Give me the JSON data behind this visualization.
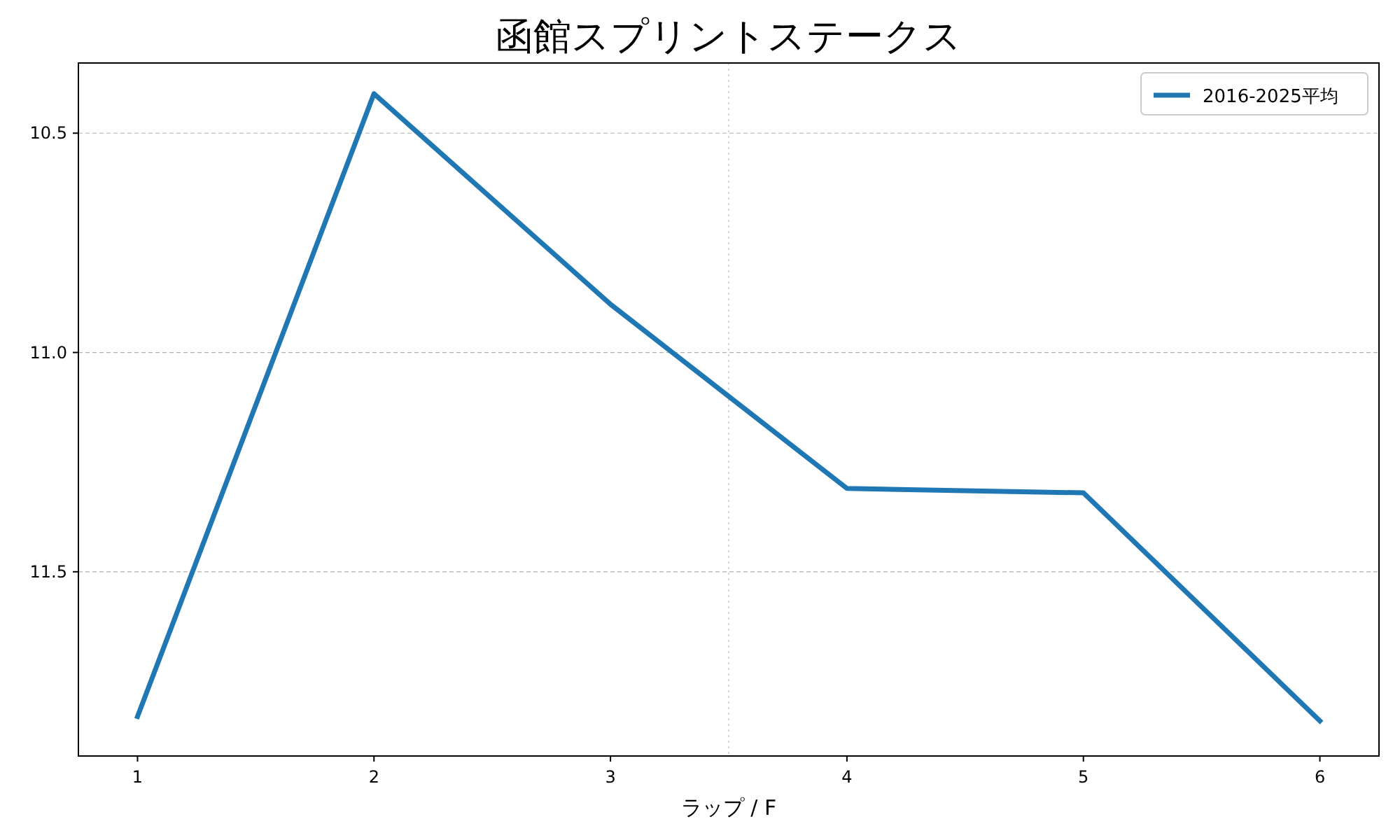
{
  "chart_data": {
    "type": "line",
    "title": "函館スプリントステークス",
    "xlabel": "ラップ / F",
    "x": [
      1,
      2,
      3,
      4,
      5,
      6
    ],
    "series": [
      {
        "name": "2016-2025平均",
        "color": "#1f77b4",
        "values": [
          11.83,
          10.41,
          10.89,
          11.31,
          11.32,
          11.84
        ]
      }
    ],
    "xlim": [
      0.75,
      6.25
    ],
    "xticks": [
      1,
      2,
      3,
      4,
      5,
      6
    ],
    "ylim": [
      11.92,
      10.34
    ],
    "yticks": [
      {
        "value": 10.5,
        "label": "10.5"
      },
      {
        "value": 11.0,
        "label": "11.0"
      },
      {
        "value": 11.5,
        "label": "11.5"
      }
    ],
    "ref_lines": [
      {
        "axis": "x",
        "value": 3.5,
        "color": "#cccccc",
        "line_style": "dotted"
      }
    ],
    "grid": "y",
    "legend": "top right",
    "marker": "none",
    "line_style": "solid"
  }
}
